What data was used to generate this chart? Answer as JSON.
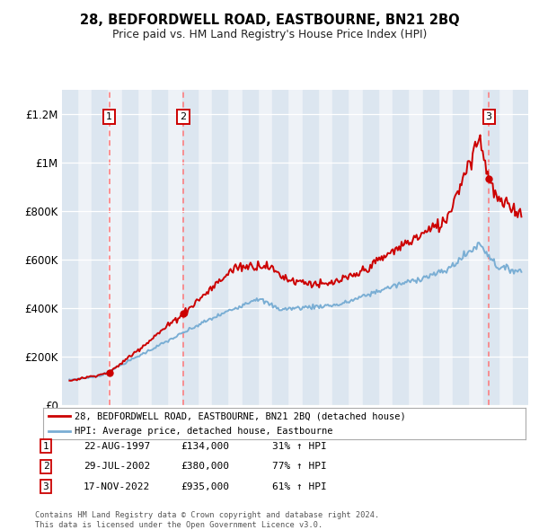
{
  "title": "28, BEDFORDWELL ROAD, EASTBOURNE, BN21 2BQ",
  "subtitle": "Price paid vs. HM Land Registry's House Price Index (HPI)",
  "legend_line1": "28, BEDFORDWELL ROAD, EASTBOURNE, BN21 2BQ (detached house)",
  "legend_line2": "HPI: Average price, detached house, Eastbourne",
  "footer1": "Contains HM Land Registry data © Crown copyright and database right 2024.",
  "footer2": "This data is licensed under the Open Government Licence v3.0.",
  "transactions": [
    {
      "num": 1,
      "date": "22-AUG-1997",
      "price": 134000,
      "pct": "31%",
      "dir": "↑",
      "year": 1997.64
    },
    {
      "num": 2,
      "date": "29-JUL-2002",
      "price": 380000,
      "pct": "77%",
      "dir": "↑",
      "year": 2002.57
    },
    {
      "num": 3,
      "date": "17-NOV-2022",
      "price": 935000,
      "pct": "61%",
      "dir": "↑",
      "year": 2022.88
    }
  ],
  "hpi_color": "#7aaed4",
  "price_color": "#cc0000",
  "vline_color": "#ff7777",
  "bg_color": "#ffffff",
  "plot_bg": "#eef2f7",
  "highlight_bg": "#dce6f0",
  "ylim": [
    0,
    1300000
  ],
  "xlim_start": 1994.5,
  "xlim_end": 2025.5,
  "yticks": [
    0,
    200000,
    400000,
    600000,
    800000,
    1000000,
    1200000
  ],
  "xticks": [
    1995,
    1996,
    1997,
    1998,
    1999,
    2000,
    2001,
    2002,
    2003,
    2004,
    2005,
    2006,
    2007,
    2008,
    2009,
    2010,
    2011,
    2012,
    2013,
    2014,
    2015,
    2016,
    2017,
    2018,
    2019,
    2020,
    2021,
    2022,
    2023,
    2024,
    2025
  ]
}
